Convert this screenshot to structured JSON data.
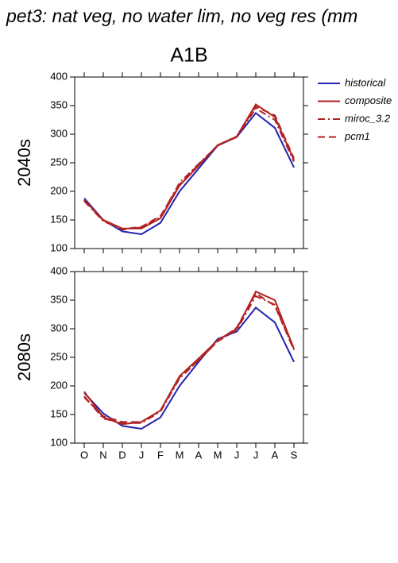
{
  "title": "pet3: nat veg, no water lim, no veg res (mm",
  "subtitle": "A1B",
  "chart_data": [
    {
      "type": "line",
      "ylabel": "2040s",
      "ylim": [
        100,
        400
      ],
      "yticks": [
        100,
        150,
        200,
        250,
        300,
        350,
        400
      ],
      "series": [
        {
          "name": "historical",
          "color": "#2323b0",
          "linestyle": "solid",
          "values": [
            188,
            150,
            130,
            125,
            145,
            200,
            240,
            280,
            295,
            337,
            311,
            242
          ]
        },
        {
          "name": "composite",
          "color": "#b22222",
          "linestyle": "solid",
          "values": [
            185,
            150,
            135,
            135,
            153,
            210,
            245,
            281,
            296,
            352,
            330,
            255
          ]
        },
        {
          "name": "miroc_3.2",
          "color": "#b22222",
          "linestyle": "dashdot",
          "values": [
            183,
            148,
            133,
            137,
            155,
            215,
            248,
            280,
            295,
            345,
            325,
            252
          ]
        },
        {
          "name": "pcm1",
          "color": "#b22222",
          "linestyle": "dashed",
          "values": [
            184,
            149,
            134,
            138,
            157,
            212,
            247,
            280,
            296,
            348,
            333,
            258
          ]
        }
      ]
    },
    {
      "type": "line",
      "ylabel": "2080s",
      "categories": [
        "O",
        "N",
        "D",
        "J",
        "F",
        "M",
        "A",
        "M",
        "J",
        "J",
        "A",
        "S"
      ],
      "ylim": [
        100,
        400
      ],
      "yticks": [
        100,
        150,
        200,
        250,
        300,
        350,
        400
      ],
      "series": [
        {
          "color": "#2323b0",
          "linestyle": "solid",
          "values": [
            188,
            152,
            130,
            125,
            145,
            200,
            242,
            282,
            295,
            337,
            311,
            242
          ]
        },
        {
          "color": "#b22222",
          "linestyle": "solid",
          "values": [
            190,
            145,
            133,
            137,
            157,
            217,
            248,
            280,
            300,
            365,
            350,
            265
          ]
        },
        {
          "color": "#b22222",
          "linestyle": "dashdot",
          "values": [
            182,
            143,
            135,
            135,
            155,
            213,
            245,
            278,
            298,
            357,
            342,
            263
          ]
        },
        {
          "color": "#b22222",
          "linestyle": "dashed",
          "values": [
            180,
            147,
            137,
            137,
            157,
            215,
            245,
            278,
            302,
            362,
            340,
            263
          ]
        }
      ]
    }
  ]
}
